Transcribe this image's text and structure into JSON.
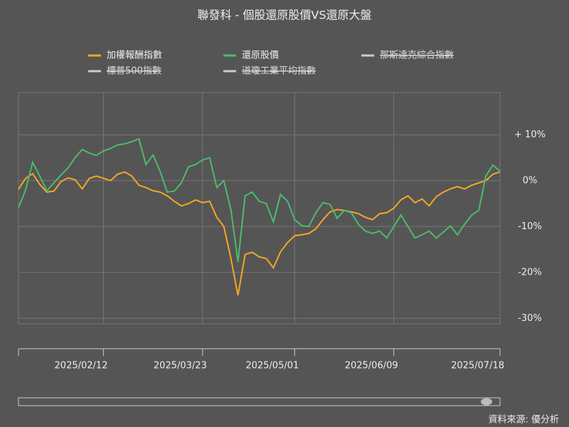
{
  "chart_data": {
    "type": "line",
    "title": "聯發科 - 個股還原股價VS還原大盤",
    "source": "資料來源: 優分析",
    "categories": [
      null,
      null,
      null,
      null,
      null,
      null,
      null,
      null,
      null,
      null,
      null,
      null,
      "2025/02/12",
      null,
      null,
      null,
      null,
      null,
      null,
      null,
      null,
      null,
      null,
      null,
      null,
      null,
      "2025/03/23",
      null,
      null,
      null,
      null,
      null,
      null,
      null,
      null,
      null,
      null,
      null,
      null,
      "2025/05/01",
      null,
      null,
      null,
      null,
      null,
      null,
      null,
      null,
      null,
      null,
      null,
      null,
      null,
      "2025/06/09",
      null,
      null,
      null,
      null,
      null,
      null,
      null,
      null,
      null,
      null,
      null,
      null,
      null,
      null,
      "2025/07/18"
    ],
    "series": [
      {
        "name": "加權報酬指數",
        "color": "#f5a623",
        "values": [
          -1.9,
          0.5,
          1.5,
          -0.8,
          -2.5,
          -2.3,
          -0.2,
          0.6,
          0.2,
          -1.8,
          0.5,
          1,
          0.5,
          0,
          1.4,
          1.9,
          1,
          -1,
          -1.5,
          -2.2,
          -2.5,
          -3.3,
          -4.5,
          -5.5,
          -5,
          -4.2,
          -4.8,
          -4.5,
          -8,
          -10,
          -17,
          -25,
          -16.1,
          -15.6,
          -16.6,
          -17,
          -19,
          -15.5,
          -13.5,
          -12,
          -11.8,
          -11.5,
          -10.5,
          -8.5,
          -6.8,
          -6.3,
          -6.5,
          -6.8,
          -7.2,
          -8,
          -8.5,
          -7.2,
          -7,
          -6,
          -4.2,
          -3.3,
          -4.8,
          -4,
          -5.5,
          -3.5,
          -2.5,
          -1.8,
          -1.3,
          -1.8,
          -1,
          -0.5,
          0,
          1.4,
          1.9
        ]
      },
      {
        "name": "還原股價",
        "color": "#4cbb6c",
        "values": [
          -5.9,
          -2,
          4,
          1,
          -2.2,
          -0.5,
          1.2,
          2.8,
          5,
          6.8,
          6,
          5.5,
          6.5,
          7,
          7.8,
          8,
          8.5,
          9.1,
          3.5,
          5.6,
          2,
          -2.5,
          -2.3,
          -0.5,
          3,
          3.5,
          4.5,
          5,
          -1.5,
          0,
          -6.4,
          -17.7,
          -3.3,
          -2.5,
          -4.5,
          -5,
          -9,
          -3,
          -4.5,
          -8.5,
          -9.8,
          -10,
          -7,
          -4.8,
          -5.2,
          -8.2,
          -6.5,
          -7,
          -9.5,
          -11,
          -11.5,
          -11,
          -12.5,
          -10,
          -7.5,
          -10,
          -12.5,
          -11.8,
          -11,
          -12.5,
          -11.2,
          -9.9,
          -11.8,
          -9.5,
          -7.5,
          -6.5,
          1,
          3.4,
          2
        ]
      },
      {
        "name": "那斯達克綜合指數",
        "color": "#cccccc",
        "hidden": true
      },
      {
        "name": "標普500指數",
        "color": "#cccccc",
        "hidden": true
      },
      {
        "name": "道瓊工業平均指數",
        "color": "#cccccc",
        "hidden": true
      }
    ],
    "ylim": [
      -31.2,
      19.2
    ],
    "yticks": [
      {
        "value": 10,
        "label": "+ 10%"
      },
      {
        "value": 0,
        "label": "0%"
      },
      {
        "value": -10,
        "label": "-10%"
      },
      {
        "value": -20,
        "label": "-20%"
      },
      {
        "value": -30,
        "label": "-30%"
      }
    ],
    "grid": true
  }
}
